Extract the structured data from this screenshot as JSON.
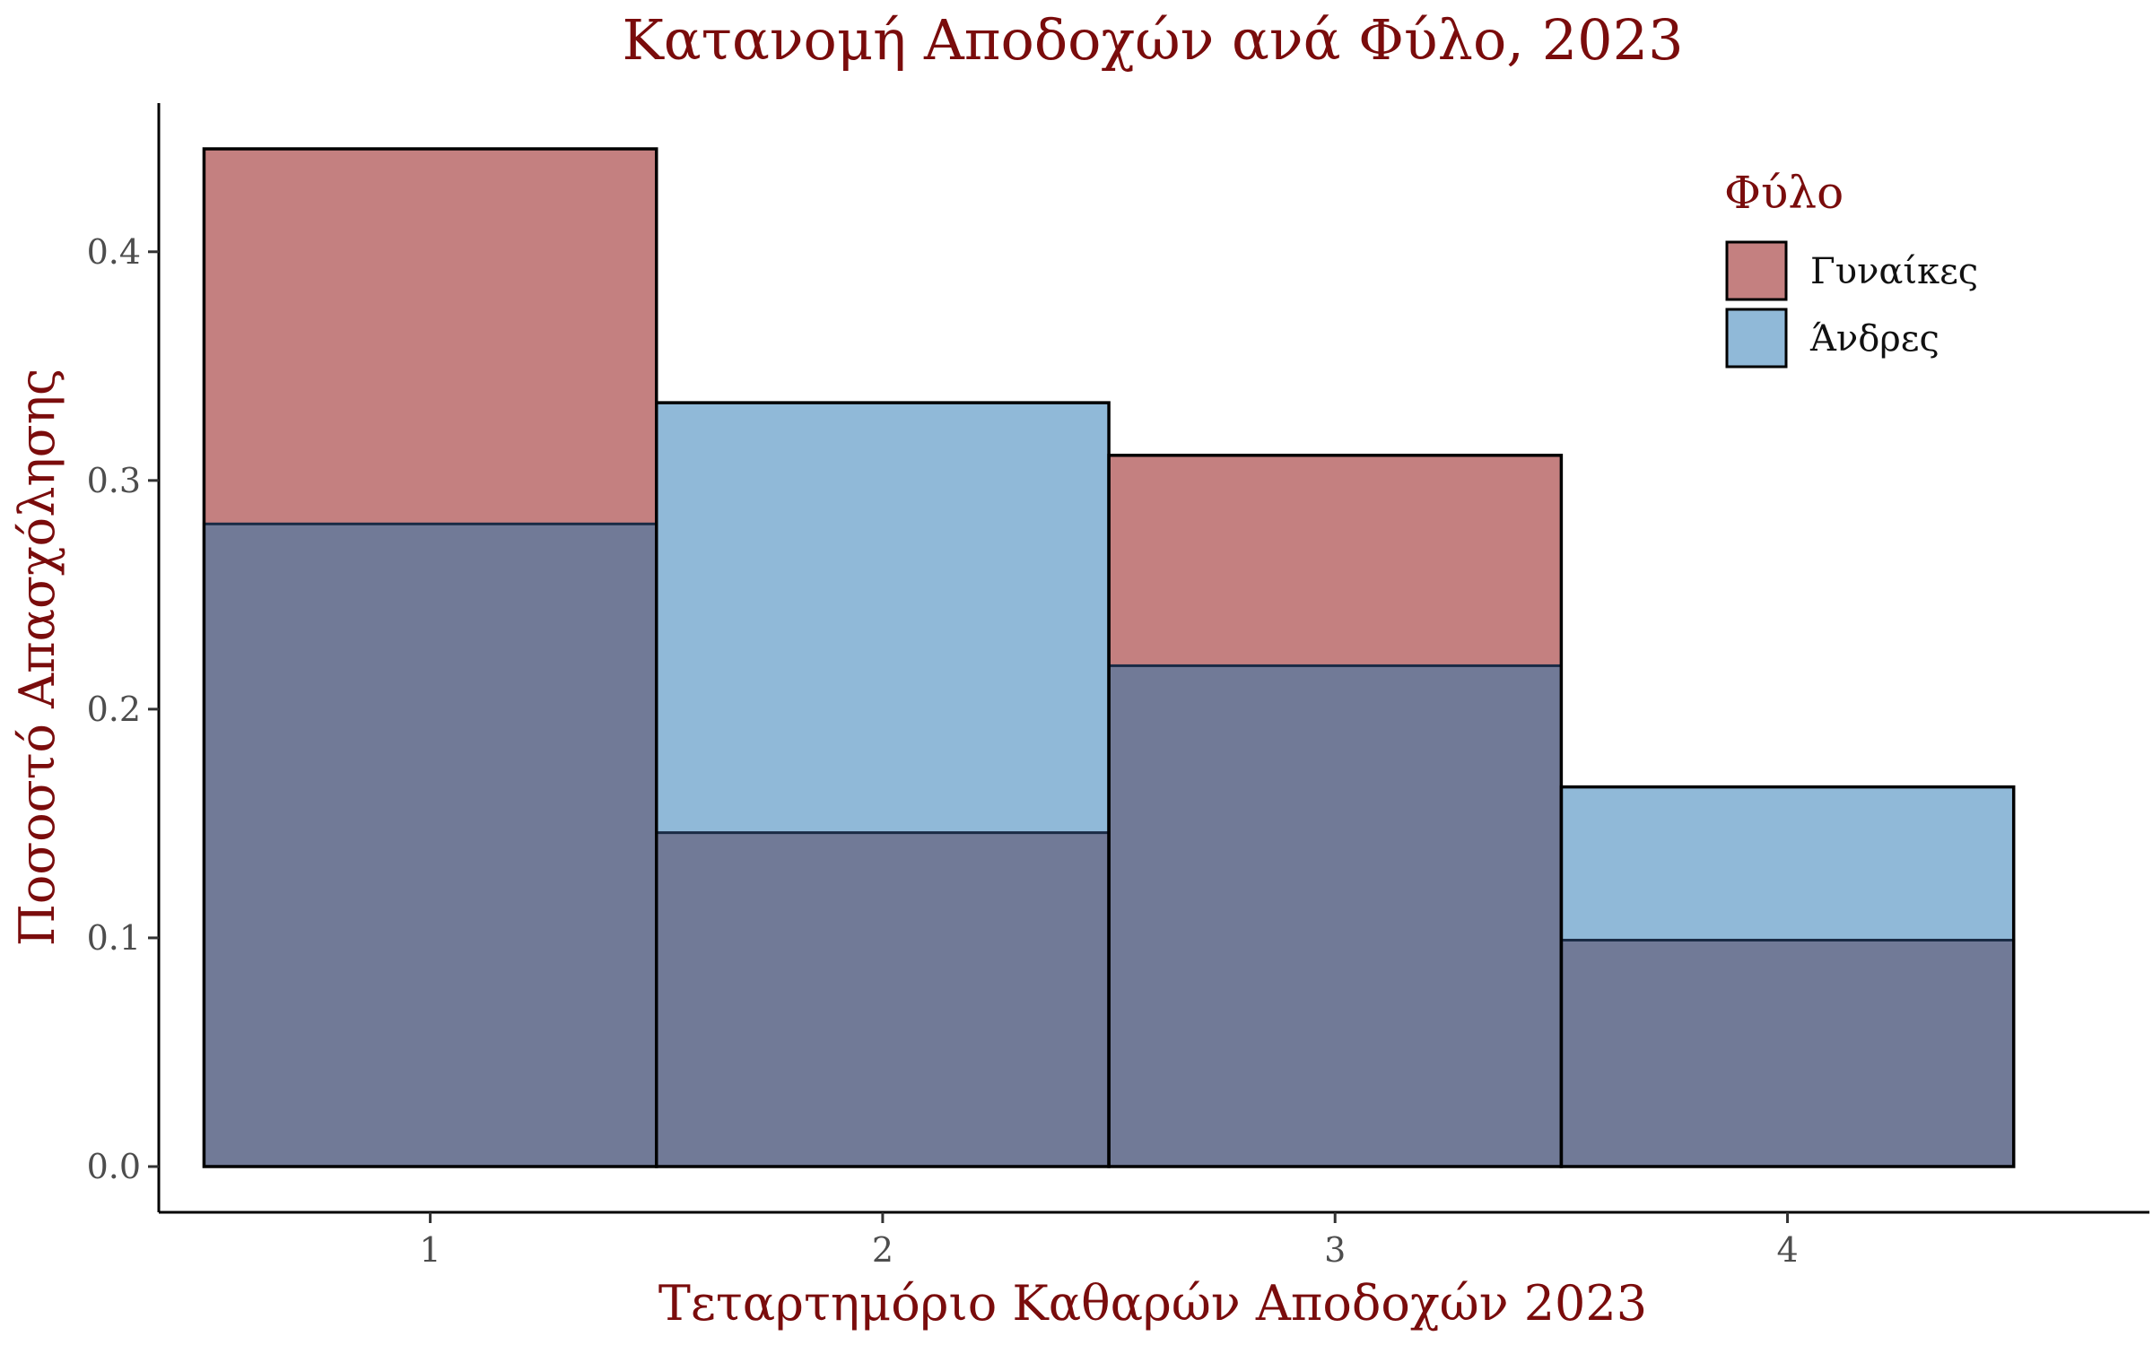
{
  "chart_data": {
    "type": "bar",
    "title": "Κατανομή Αποδοχών ανά Φύλο, 2023",
    "xlabel": "Τεταρτημόριο Καθαρών Αποδοχών 2023",
    "ylabel": "Ποσοστό Απασχόλησης",
    "categories": [
      "1",
      "2",
      "3",
      "4"
    ],
    "yticks": [
      "0.0",
      "0.1",
      "0.2",
      "0.3",
      "0.4"
    ],
    "ylim": [
      -0.02,
      0.465
    ],
    "bars_overlap": true,
    "grid": false,
    "legend": {
      "title": "Φύλο",
      "position": "top-right"
    },
    "series": [
      {
        "name": "Γυναίκες",
        "color": "#c48080",
        "values": [
          0.445,
          0.146,
          0.311,
          0.099
        ]
      },
      {
        "name": "Άνδρες",
        "color": "#90b9d8",
        "values": [
          0.281,
          0.334,
          0.219,
          0.166
        ]
      }
    ],
    "overlap_color": "#717a97"
  }
}
